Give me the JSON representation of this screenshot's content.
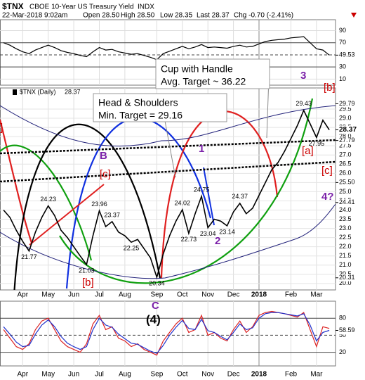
{
  "header": {
    "symbol": "$TNX",
    "name": "CBOE 10-Year US Treasury Yield",
    "exchange": "INDX",
    "datetime": "22-Mar-2018 9:02am",
    "quote": [
      "Open 28.50",
      "High 28.50",
      "Low 28.35",
      "Last 28.37",
      "Chg -0.70 (-2.41%)"
    ]
  },
  "chart_data": [
    {
      "type": "line",
      "ylim": [
        0,
        108
      ],
      "yticks": [
        10,
        30,
        50,
        70,
        90
      ],
      "last": 49.53,
      "series": [
        {
          "color": "#000000",
          "values": [
            70,
            66,
            60,
            55,
            52,
            58,
            62,
            66,
            62,
            57,
            54,
            52,
            49,
            47,
            55,
            62,
            58,
            59,
            55,
            53,
            51,
            52,
            49,
            46,
            42,
            52,
            56,
            60,
            64,
            60,
            63,
            67,
            62,
            63,
            62,
            61,
            64,
            66,
            63,
            64,
            68,
            72,
            74,
            75,
            76,
            78,
            79,
            80,
            70,
            60,
            58,
            49.53
          ]
        }
      ]
    },
    {
      "type": "line",
      "ylim": [
        19.65,
        30.65
      ],
      "grid": true,
      "last": 28.37,
      "categories": [
        null,
        null,
        null,
        "Apr",
        null,
        null,
        null,
        "May",
        null,
        null,
        null,
        "Jun",
        null,
        null,
        null,
        "Jul",
        null,
        null,
        null,
        "Aug",
        null,
        null,
        null,
        null,
        "Sep",
        null,
        null,
        null,
        "Oct",
        null,
        null,
        null,
        "Nov",
        null,
        null,
        null,
        "Dec",
        null,
        null,
        null,
        "2018",
        null,
        null,
        null,
        null,
        "Feb",
        null,
        null,
        null,
        "Mar",
        null,
        null
      ],
      "yticks": [
        {
          "value": 20,
          "label": "20.0"
        },
        {
          "value": 20.5,
          "label": "20.5"
        },
        {
          "value": 21,
          "label": "21.0"
        },
        {
          "value": 21.5,
          "label": "21.5"
        },
        {
          "value": 22,
          "label": "22.0"
        },
        {
          "value": 22.5,
          "label": "22.5"
        },
        {
          "value": 23,
          "label": "23.0"
        },
        {
          "value": 23.5,
          "label": "23.5"
        },
        {
          "value": 24,
          "label": "24.0"
        },
        {
          "value": 24.5,
          "label": "24.5"
        },
        {
          "value": 25,
          "label": "25.0"
        },
        {
          "value": 25.5,
          "label": "25.5"
        },
        {
          "value": 26,
          "label": "26.0"
        },
        {
          "value": 26.5,
          "label": "26.5"
        },
        {
          "value": 27,
          "label": "27.0"
        },
        {
          "value": 27.5,
          "label": "27.5"
        },
        {
          "value": 28,
          "label": "28.0"
        },
        {
          "value": 28.5,
          "label": "28.5"
        },
        {
          "value": 29,
          "label": "29.0"
        },
        {
          "value": 29.5,
          "label": "29.5"
        }
      ],
      "side_values": [
        29.79,
        27.79,
        {
          "value": 25.5,
          "label": "25.50"
        },
        24.41,
        20.31
      ],
      "series": [
        {
          "name": "$TNX (Daily)",
          "color": "#000000",
          "values": [
            24.0,
            23.6,
            22.9,
            22.3,
            21.77,
            22.8,
            23.6,
            24.23,
            23.7,
            22.9,
            22.5,
            22.0,
            21.5,
            21.03,
            22.6,
            23.96,
            23.1,
            23.37,
            22.8,
            22.6,
            22.25,
            22.4,
            21.9,
            21.4,
            20.34,
            21.6,
            22.6,
            23.4,
            24.02,
            22.73,
            23.8,
            24.75,
            23.04,
            23.5,
            23.4,
            23.14,
            23.9,
            24.37,
            23.8,
            24.1,
            24.8,
            25.5,
            26.2,
            26.6,
            27.2,
            27.9,
            28.6,
            29.43,
            28.7,
            27.95,
            28.9,
            28.37
          ],
          "value_labels": [
            null,
            null,
            null,
            null,
            "21.77",
            null,
            null,
            "24.23",
            null,
            null,
            null,
            null,
            null,
            "21.03",
            null,
            "23.96",
            null,
            "23.37",
            null,
            null,
            "22.25",
            null,
            null,
            null,
            "20.34",
            null,
            null,
            null,
            "24.02",
            "22.73",
            null,
            "24.75",
            "23.04",
            null,
            null,
            "23.14",
            null,
            "24.37",
            null,
            null,
            null,
            null,
            null,
            null,
            null,
            null,
            null,
            "29.43",
            null,
            "27.95",
            null,
            null
          ]
        }
      ],
      "annotations": [
        "Cup with Handle",
        "Avg. Target ~ 36.22",
        "Head & Shoulders",
        "Min. Target = 29.16"
      ],
      "wave_labels": [
        "3",
        "[b]",
        "1",
        "2",
        "B",
        "[c]",
        "[a]",
        "[c]",
        "4?",
        "[b]",
        "C",
        "(4)",
        "]"
      ]
    },
    {
      "type": "line",
      "ylim": [
        -4,
        110
      ],
      "yticks": [
        20,
        50,
        80
      ],
      "last": 58.59,
      "series": [
        {
          "color": "#dd2222",
          "values": [
            60,
            45,
            30,
            25,
            35,
            60,
            75,
            80,
            60,
            40,
            30,
            25,
            20,
            35,
            70,
            85,
            60,
            65,
            45,
            40,
            30,
            35,
            25,
            20,
            15,
            40,
            55,
            70,
            80,
            55,
            60,
            85,
            50,
            55,
            45,
            40,
            60,
            75,
            55,
            65,
            85,
            90,
            92,
            90,
            88,
            85,
            82,
            90,
            60,
            30,
            65,
            62
          ]
        },
        {
          "color": "#2233cc",
          "values": [
            65,
            52,
            38,
            30,
            32,
            52,
            68,
            77,
            65,
            48,
            36,
            30,
            25,
            30,
            60,
            80,
            68,
            64,
            52,
            44,
            36,
            34,
            28,
            22,
            18,
            32,
            50,
            64,
            76,
            62,
            60,
            78,
            58,
            55,
            48,
            42,
            55,
            70,
            60,
            63,
            80,
            88,
            90,
            90,
            88,
            86,
            84,
            88,
            68,
            40,
            55,
            58.59
          ]
        }
      ]
    }
  ]
}
